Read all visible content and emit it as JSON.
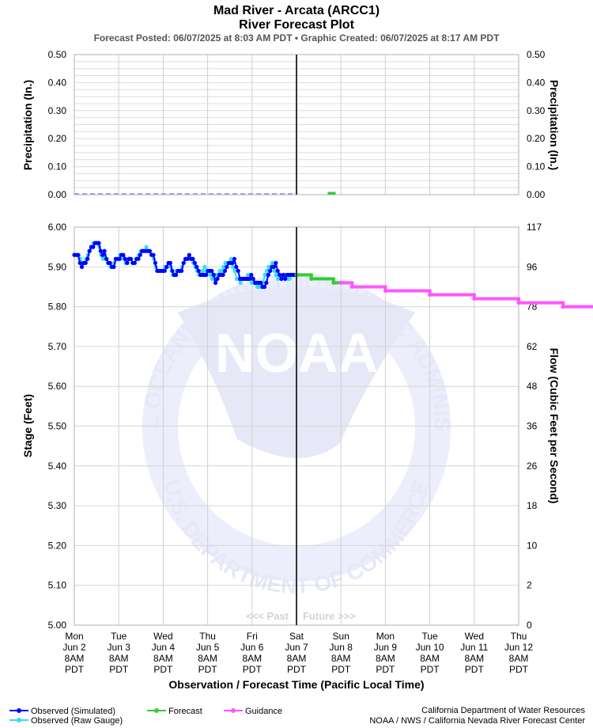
{
  "header": {
    "title_line1": "Mad River - Arcata (ARCC1)",
    "title_line2": "River Forecast Plot",
    "subtitle": "Forecast Posted: 06/07/2025 at 8:03 AM PDT  •  Graphic Created: 06/07/2025 at 8:17 AM PDT"
  },
  "watermark": {
    "logo_text": "NOAA",
    "ring_top": "NATIONAL OCEANIC AND ATMOSPHERIC ADMINISTRATION",
    "ring_bottom": "U.S. DEPARTMENT OF COMMERCE"
  },
  "chart_data": [
    {
      "type": "bar",
      "panel": "precipitation",
      "ylabel_left": "Precipitation (In.)",
      "ylabel_right": "Precipitation (In.)",
      "ylim": [
        0,
        0.5
      ],
      "yticks": [
        "0.50",
        "0.40",
        "0.30",
        "0.20",
        "0.10",
        "0.00"
      ],
      "grid": true,
      "observed_precip": [
        0,
        0,
        0,
        0,
        0,
        0,
        0,
        0,
        0,
        0,
        0,
        0,
        0,
        0,
        0,
        0,
        0,
        0,
        0,
        0
      ],
      "forecast_precip": [
        {
          "x": "Jun 8 3AM",
          "value": 0.01
        }
      ]
    },
    {
      "type": "line",
      "panel": "stage",
      "ylabel_left": "Stage (Feet)",
      "ylabel_right": "Flow (Cubic Feet per Second)",
      "xlabel": "Observation / Forecast Time (Pacific Local Time)",
      "ylim": [
        5.0,
        6.0
      ],
      "yticks": [
        "6.00",
        "5.90",
        "5.80",
        "5.70",
        "5.60",
        "5.50",
        "5.40",
        "5.30",
        "5.20",
        "5.10",
        "5.00"
      ],
      "flow_ticks": [
        "117",
        "96",
        "78",
        "62",
        "48",
        "36",
        "26",
        "18",
        "10",
        "2",
        "0"
      ],
      "grid": true,
      "x_ticks": [
        {
          "day": "Mon",
          "date": "Jun 2",
          "time": "8AM",
          "tz": "PDT"
        },
        {
          "day": "Tue",
          "date": "Jun 3",
          "time": "8AM",
          "tz": "PDT"
        },
        {
          "day": "Wed",
          "date": "Jun 4",
          "time": "8AM",
          "tz": "PDT"
        },
        {
          "day": "Thu",
          "date": "Jun 5",
          "time": "8AM",
          "tz": "PDT"
        },
        {
          "day": "Fri",
          "date": "Jun 6",
          "time": "8AM",
          "tz": "PDT"
        },
        {
          "day": "Sat",
          "date": "Jun 7",
          "time": "8AM",
          "tz": "PDT"
        },
        {
          "day": "Sun",
          "date": "Jun 8",
          "time": "8AM",
          "tz": "PDT"
        },
        {
          "day": "Mon",
          "date": "Jun 9",
          "time": "8AM",
          "tz": "PDT"
        },
        {
          "day": "Tue",
          "date": "Jun 10",
          "time": "8AM",
          "tz": "PDT"
        },
        {
          "day": "Wed",
          "date": "Jun 11",
          "time": "8AM",
          "tz": "PDT"
        },
        {
          "day": "Thu",
          "date": "Jun 12",
          "time": "8AM",
          "tz": "PDT"
        }
      ],
      "now_marker": "Jun 7 8AM",
      "past_label": "<<< Past",
      "future_label": "Future >>>",
      "series": [
        {
          "name": "Observed (Simulated)",
          "color": "#0000ff",
          "values": [
            5.93,
            5.93,
            5.93,
            5.91,
            5.9,
            5.91,
            5.91,
            5.92,
            5.94,
            5.95,
            5.95,
            5.96,
            5.96,
            5.96,
            5.94,
            5.93,
            5.94,
            5.92,
            5.91,
            5.91,
            5.9,
            5.9,
            5.92,
            5.92,
            5.92,
            5.93,
            5.93,
            5.92,
            5.91,
            5.92,
            5.92,
            5.91,
            5.91,
            5.92,
            5.92,
            5.93,
            5.94,
            5.94,
            5.94,
            5.94,
            5.94,
            5.93,
            5.93,
            5.91,
            5.89,
            5.89,
            5.89,
            5.89,
            5.89,
            5.9,
            5.91,
            5.91,
            5.89,
            5.88,
            5.88,
            5.89,
            5.89,
            5.89,
            5.91,
            5.92,
            5.92,
            5.93,
            5.92,
            5.92,
            5.91,
            5.9,
            5.89,
            5.88,
            5.88,
            5.88,
            5.88,
            5.89,
            5.89,
            5.89,
            5.88,
            5.86,
            5.87,
            5.88,
            5.88,
            5.88,
            5.89,
            5.9,
            5.91,
            5.91,
            5.91,
            5.92,
            5.9,
            5.89,
            5.87,
            5.87,
            5.87,
            5.87,
            5.87,
            5.87,
            5.88,
            5.87,
            5.86,
            5.86,
            5.86,
            5.86,
            5.85,
            5.85,
            5.86,
            5.88,
            5.89,
            5.9,
            5.9,
            5.91,
            5.89,
            5.88,
            5.87,
            5.88,
            5.87,
            5.88,
            5.88,
            5.88,
            5.88,
            5.88,
            5.88
          ]
        },
        {
          "name": "Observed (Raw Gauge)",
          "color": "#33e0f0",
          "values": [
            5.93,
            5.93,
            5.93,
            5.92,
            5.91,
            5.91,
            5.92,
            5.93,
            5.94,
            5.95,
            5.96,
            5.96,
            5.96,
            5.95,
            5.93,
            5.92,
            5.93,
            5.92,
            5.91,
            5.9,
            5.9,
            5.91,
            5.92,
            5.92,
            5.93,
            5.93,
            5.92,
            5.91,
            5.91,
            5.92,
            5.92,
            5.91,
            5.91,
            5.92,
            5.93,
            5.94,
            5.94,
            5.94,
            5.95,
            5.94,
            5.94,
            5.93,
            5.92,
            5.9,
            5.89,
            5.89,
            5.89,
            5.89,
            5.9,
            5.9,
            5.91,
            5.9,
            5.88,
            5.88,
            5.89,
            5.89,
            5.89,
            5.9,
            5.91,
            5.92,
            5.92,
            5.92,
            5.92,
            5.91,
            5.9,
            5.89,
            5.88,
            5.88,
            5.89,
            5.9,
            5.89,
            5.89,
            5.88,
            5.87,
            5.87,
            5.88,
            5.88,
            5.89,
            5.89,
            5.9,
            5.91,
            5.91,
            5.91,
            5.92,
            5.9,
            5.89,
            5.87,
            5.87,
            5.86,
            5.87,
            5.87,
            5.87,
            5.88,
            5.87,
            5.86,
            5.86,
            5.86,
            5.85,
            5.85,
            5.85,
            5.86,
            5.88,
            5.89,
            5.9,
            5.9,
            5.91,
            5.89,
            5.88,
            5.87,
            5.88,
            5.87,
            5.88,
            5.88,
            5.87,
            5.87,
            5.88,
            5.88,
            5.88,
            5.88
          ]
        },
        {
          "name": "Forecast",
          "color": "#33cc33",
          "points": [
            {
              "t_hours": 120,
              "v": 5.88
            },
            {
              "t_hours": 128,
              "v": 5.87
            },
            {
              "t_hours": 140,
              "v": 5.86
            },
            {
              "t_hours": 144,
              "v": 5.86
            }
          ]
        },
        {
          "name": "Guidance",
          "color": "#ff55ff",
          "points": [
            {
              "t_hours": 144,
              "v": 5.86
            },
            {
              "t_hours": 150,
              "v": 5.85
            },
            {
              "t_hours": 168,
              "v": 5.84
            },
            {
              "t_hours": 192,
              "v": 5.83
            },
            {
              "t_hours": 216,
              "v": 5.82
            },
            {
              "t_hours": 240,
              "v": 5.81
            },
            {
              "t_hours": 264,
              "v": 5.8
            },
            {
              "t_hours": 288,
              "v": 5.79
            },
            {
              "t_hours": 300,
              "v": 5.79
            }
          ]
        }
      ]
    }
  ],
  "legend": {
    "observed_simulated": "Observed (Simulated)",
    "observed_raw": "Observed (Raw Gauge)",
    "forecast": "Forecast",
    "guidance": "Guidance"
  },
  "credits": {
    "line1": "California Department of Water Resources",
    "line2": "NOAA / NWS / California Nevada River Forecast Center"
  }
}
